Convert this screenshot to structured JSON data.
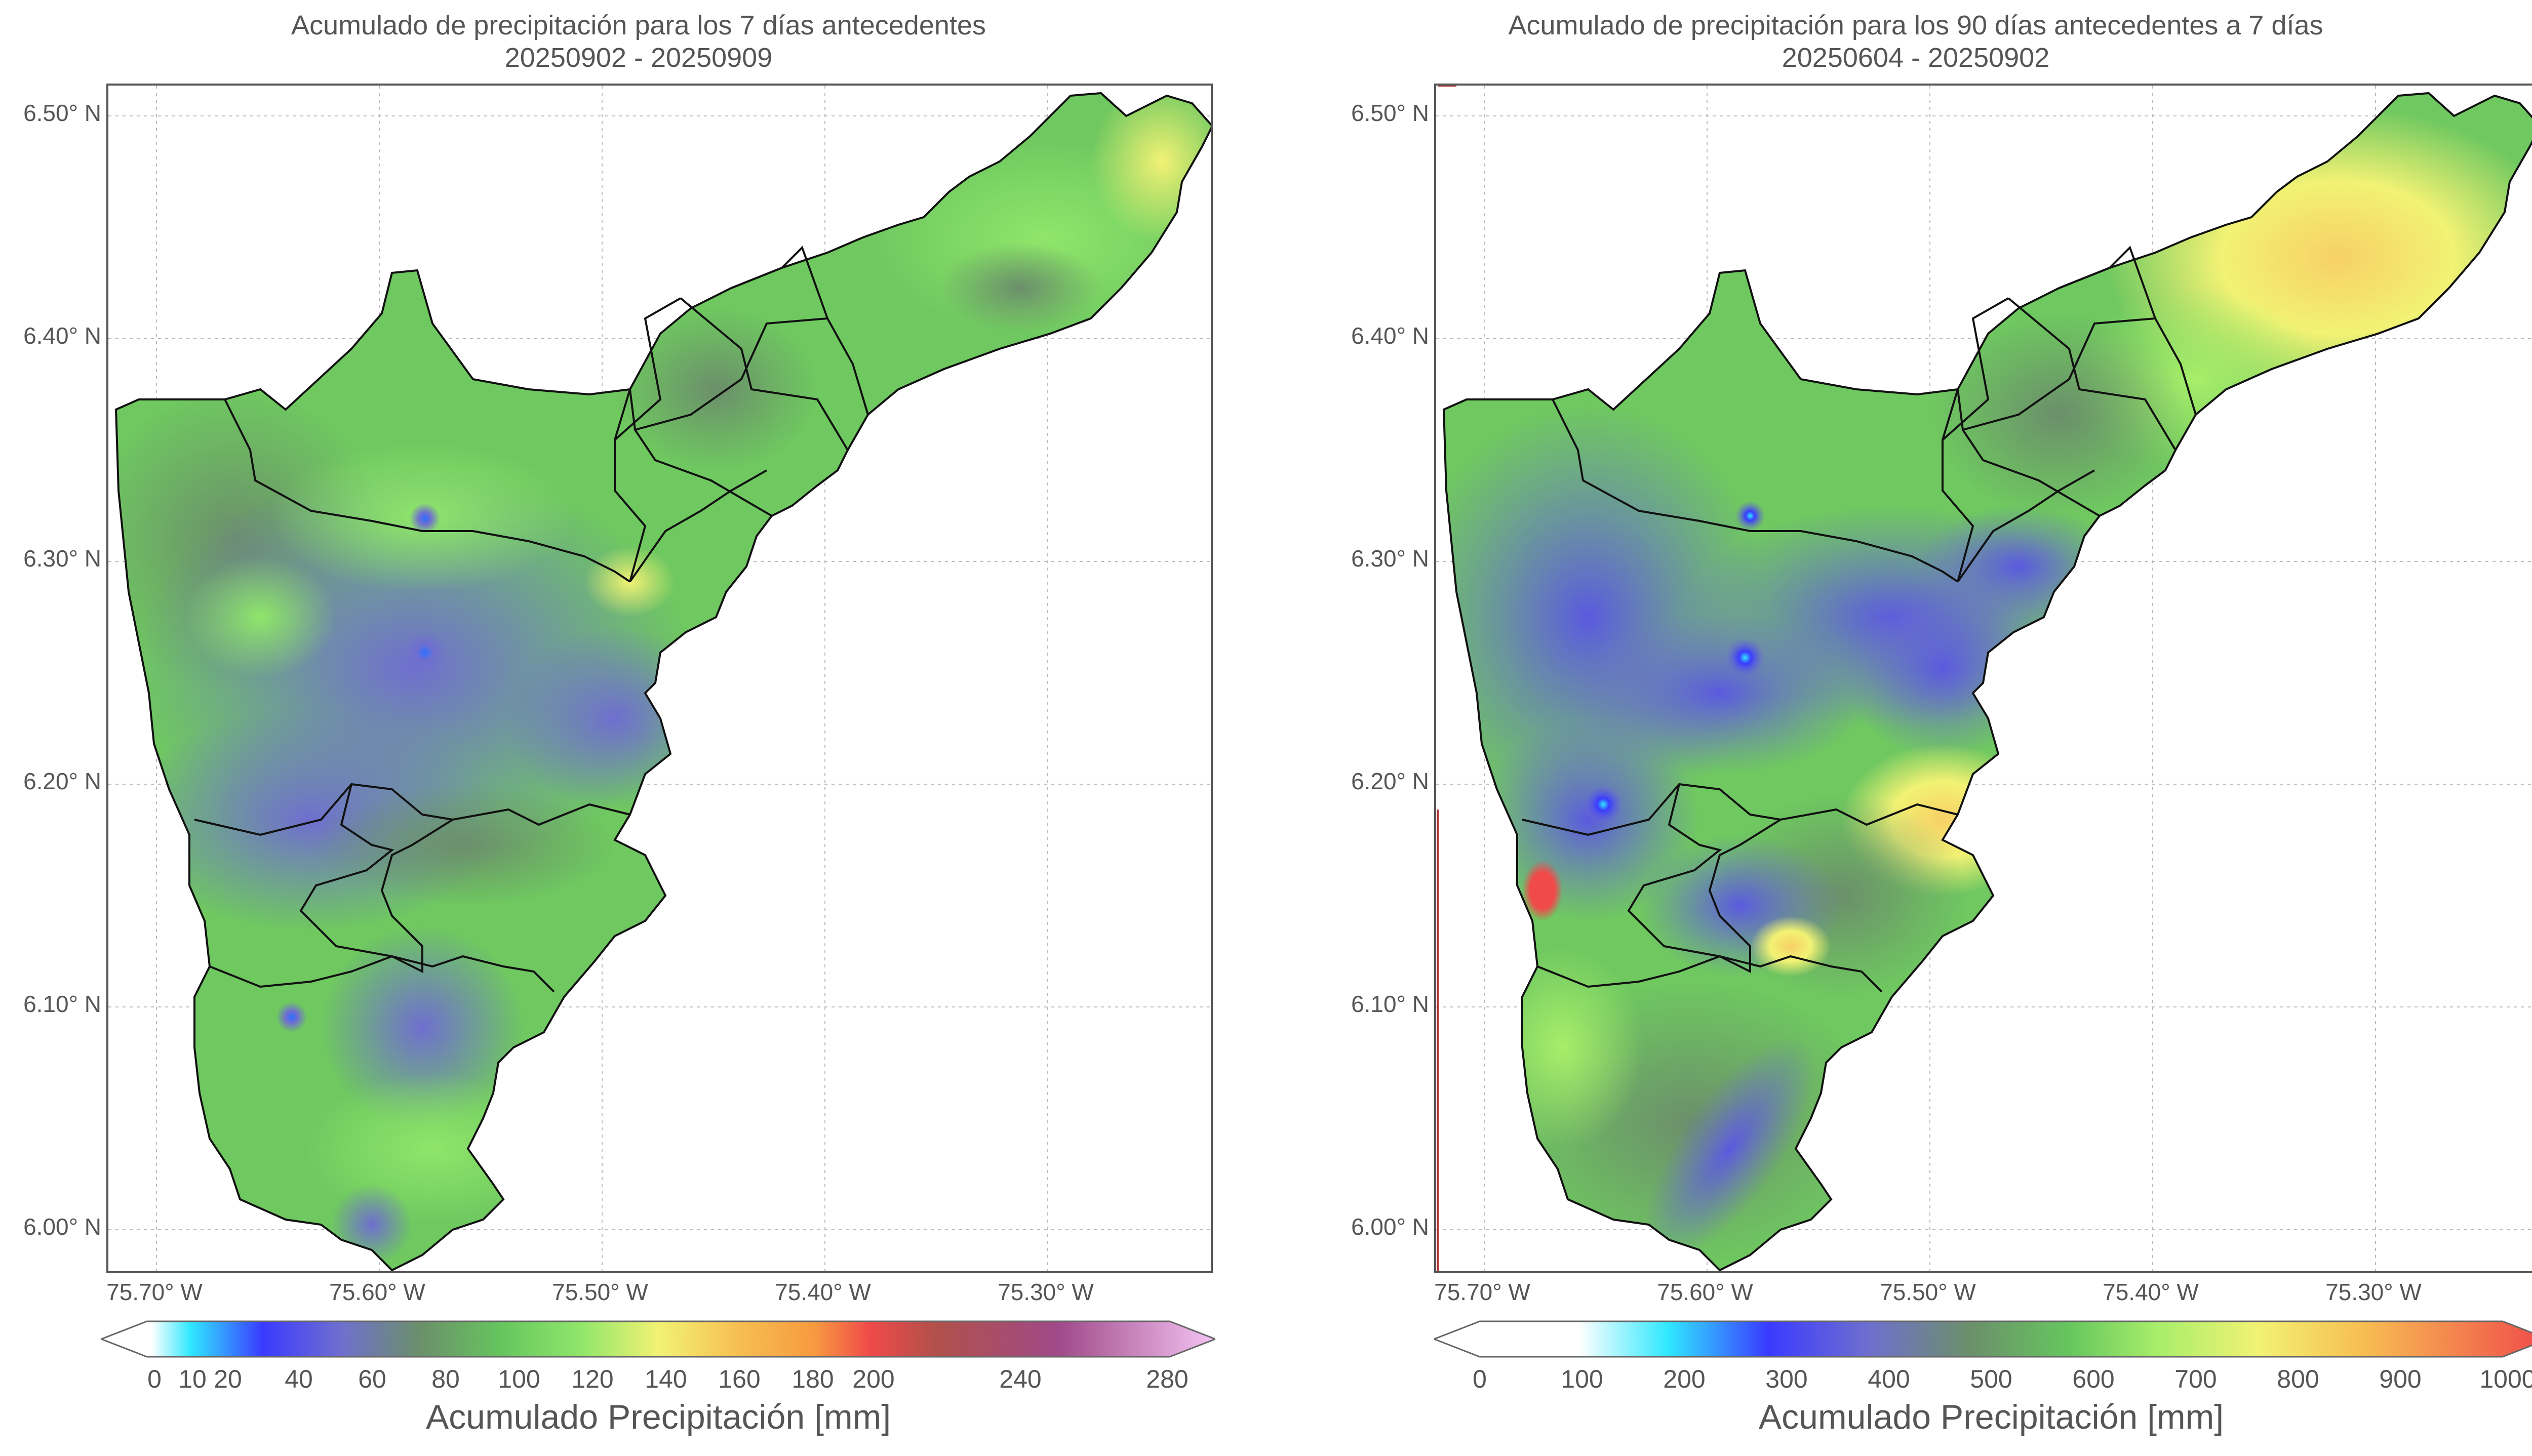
{
  "left_map": {
    "title_line1": "Acumulado de precipitación para los 7 días antecedentes",
    "title_line2": "20250902 - 20250909",
    "y_ticks": [
      "6.50° N",
      "6.40° N",
      "6.30° N",
      "6.20° N",
      "6.10° N",
      "6.00° N"
    ],
    "x_ticks": [
      "75.70° W",
      "75.60° W",
      "75.50° W",
      "75.40° W",
      "75.30° W"
    ],
    "colorbar": {
      "label": "Acumulado Precipitación [mm]",
      "ticks": [
        "0",
        "10",
        "20",
        "40",
        "60",
        "80",
        "100",
        "120",
        "140",
        "160",
        "180",
        "200",
        "240",
        "280"
      ],
      "min": 0,
      "max": 280,
      "extend": "both",
      "colors": [
        "#ffffff",
        "#30e8ff",
        "#3a3aff",
        "#6f6fcf",
        "#6b8f6b",
        "#66c65e",
        "#8fe66a",
        "#f2f274",
        "#f6c052",
        "#f79a40",
        "#f04a4a",
        "#b0504a",
        "#a04a8a",
        "#f4c4f4"
      ]
    }
  },
  "right_map": {
    "title_line1": "Acumulado de precipitación para los 90 días antecedentes a 7 días",
    "title_line2": "20250604 - 20250902",
    "y_ticks": [
      "6.50° N",
      "6.40° N",
      "6.30° N",
      "6.20° N",
      "6.10° N",
      "6.00° N"
    ],
    "x_ticks": [
      "75.70° W",
      "75.60° W",
      "75.50° W",
      "75.40° W",
      "75.30° W"
    ],
    "colorbar": {
      "label": "Acumulado Precipitación [mm]",
      "ticks": [
        "0",
        "100",
        "200",
        "300",
        "400",
        "500",
        "600",
        "700",
        "800",
        "900",
        "1000"
      ],
      "min": 0,
      "max": 1000,
      "extend": "both",
      "colors": [
        "#ffffff",
        "#ffffff",
        "#30e8ff",
        "#3a3aff",
        "#6f6fcf",
        "#6b8f6b",
        "#66c65e",
        "#a8ee6a",
        "#f2f274",
        "#f7c052",
        "#f04a4a"
      ]
    }
  }
}
